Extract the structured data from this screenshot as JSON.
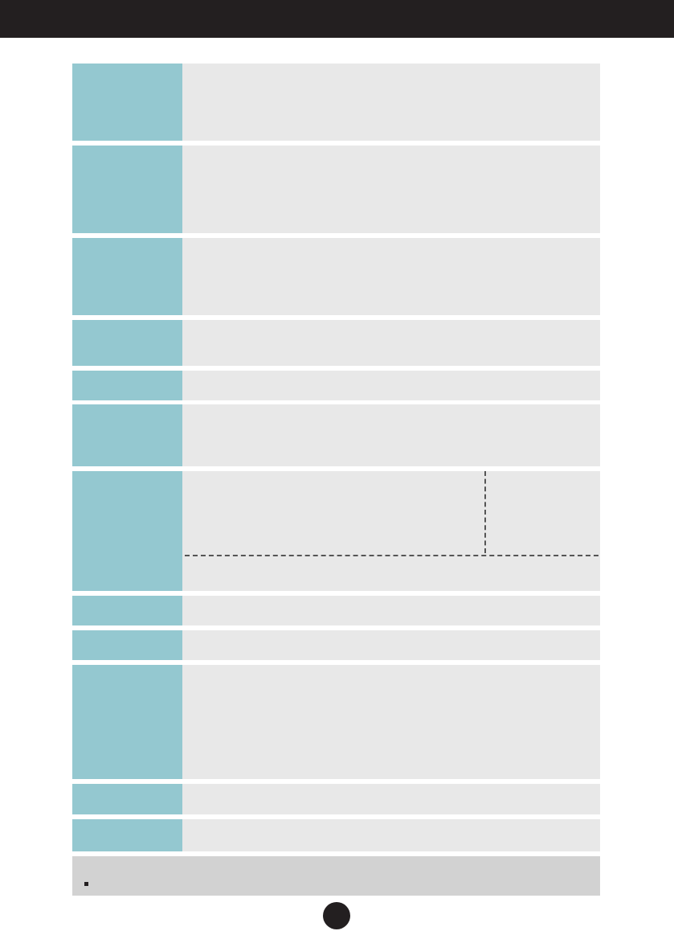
{
  "colors": {
    "header": "#231f20",
    "label_cell": "#94c8d0",
    "value_cell": "#e8e8e8",
    "note_box": "#d2d2d2"
  },
  "header": {
    "title": ""
  },
  "table": {
    "rows": [
      {
        "label": "",
        "value": ""
      },
      {
        "label": "",
        "value": ""
      },
      {
        "label": "",
        "value": ""
      },
      {
        "label": "",
        "value": ""
      },
      {
        "label": "",
        "value": ""
      },
      {
        "label": "",
        "value": ""
      },
      {
        "label": "",
        "value": ""
      },
      {
        "label": "",
        "value": ""
      },
      {
        "label": "",
        "value": ""
      },
      {
        "label": "",
        "value": ""
      },
      {
        "label": "",
        "value": ""
      },
      {
        "label": "",
        "value": ""
      }
    ]
  },
  "note": {
    "text": ""
  },
  "page_number": ""
}
